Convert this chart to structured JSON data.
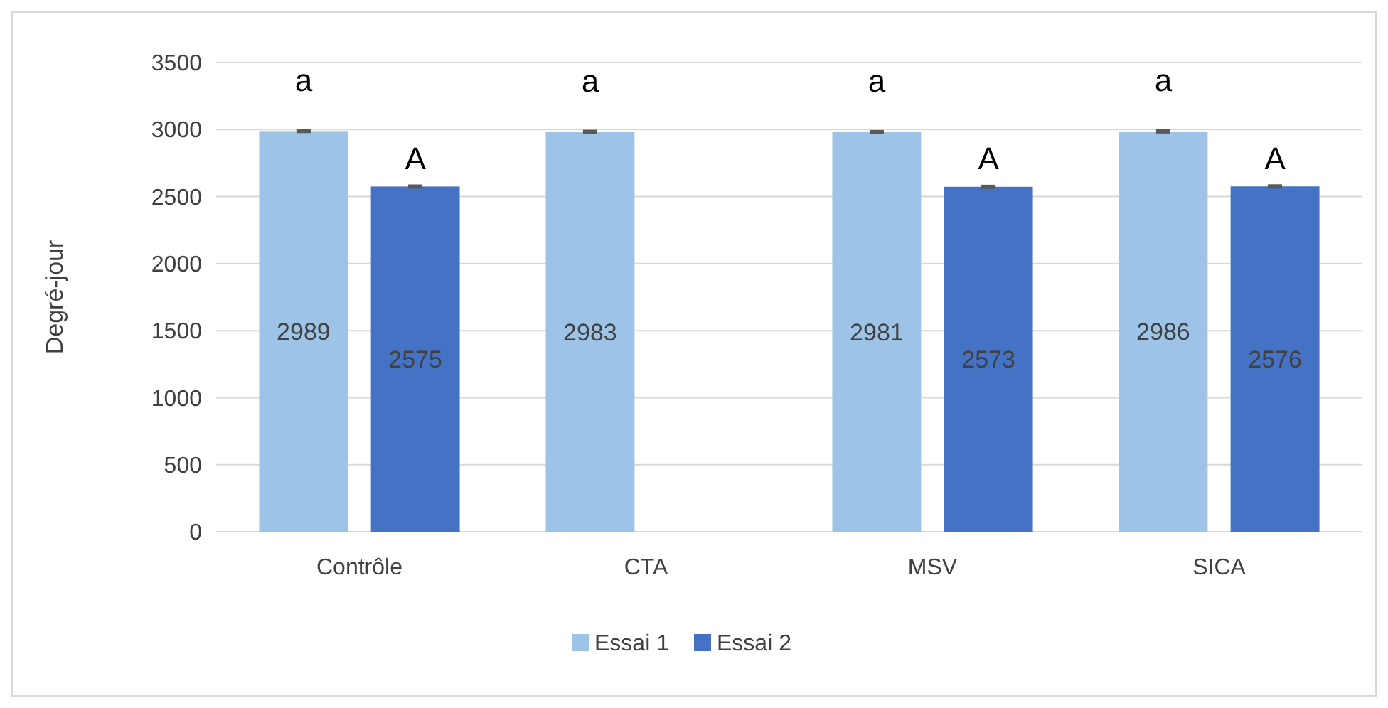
{
  "chart_data": {
    "type": "bar",
    "ylabel": "Degré-jour",
    "categories": [
      "Contrôle",
      "CTA",
      "MSV",
      "SICA"
    ],
    "series": [
      {
        "name": "Essai 1",
        "color": "#9dc3e6",
        "values": [
          2989,
          2983,
          2981,
          2986
        ],
        "errors": [
          5,
          5,
          5,
          5
        ]
      },
      {
        "name": "Essai 2",
        "color": "#4472c4",
        "values": [
          2575,
          null,
          2573,
          2576
        ],
        "errors": [
          5,
          null,
          5,
          5
        ]
      }
    ],
    "ylim": [
      0,
      3500
    ],
    "yticks": [
      0,
      500,
      1000,
      1500,
      2000,
      2500,
      3000,
      3500
    ],
    "grid": "y",
    "legend": "bottom",
    "data_labels": true,
    "annotations": [
      "a",
      "A",
      "a",
      "a",
      "A",
      "a",
      "A"
    ]
  }
}
